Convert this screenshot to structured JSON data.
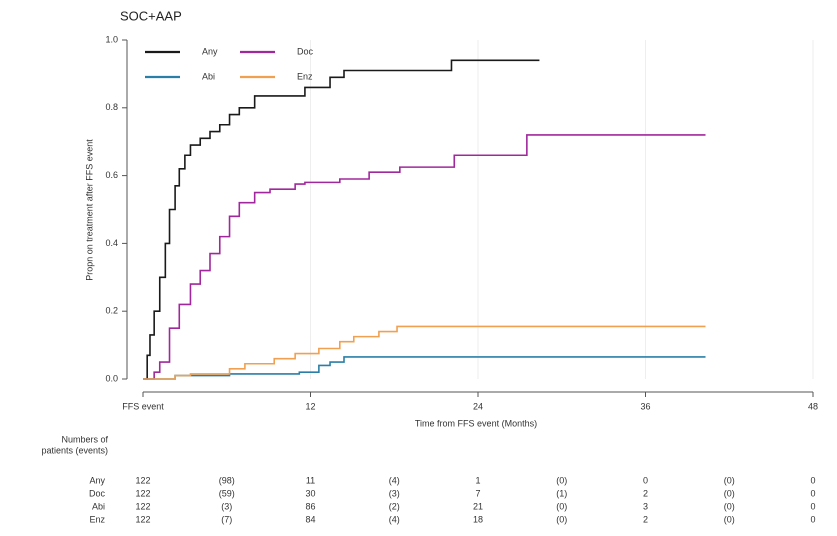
{
  "chart_data": {
    "type": "step",
    "title": "SOC+AAP",
    "x_label": "Time from FFS event (Months)",
    "y_label": "Propn on treatment after FFS event",
    "xlim": [
      0,
      48
    ],
    "xticks": [
      {
        "value": 0,
        "label": "FFS event"
      },
      12,
      24,
      36,
      48
    ],
    "ylim": [
      0,
      1
    ],
    "yticks": [
      {
        "value": 0,
        "label": "0.0"
      },
      0.2,
      0.4,
      0.6,
      0.8,
      {
        "value": 1,
        "label": "1.0"
      }
    ],
    "grid": true,
    "legend": "top-left",
    "series": [
      {
        "name": "Any",
        "color": "#1a1a1a",
        "x": [
          0,
          0.3,
          0.5,
          0.8,
          1.2,
          1.6,
          1.9,
          2.3,
          2.6,
          3.0,
          3.4,
          4.1,
          4.8,
          5.5,
          6.2,
          6.9,
          8.0,
          11.6,
          13.4,
          14.4,
          22.1,
          28.4
        ],
        "values": [
          0,
          0.07,
          0.13,
          0.2,
          0.3,
          0.4,
          0.5,
          0.57,
          0.62,
          0.66,
          0.69,
          0.71,
          0.73,
          0.75,
          0.78,
          0.8,
          0.835,
          0.86,
          0.89,
          0.91,
          0.94,
          0.94
        ]
      },
      {
        "name": "Doc",
        "color": "#a0289c",
        "x": [
          0,
          0.8,
          1.2,
          1.9,
          2.6,
          3.4,
          4.1,
          4.8,
          5.5,
          6.2,
          6.9,
          8.0,
          9.1,
          10.9,
          11.6,
          14.1,
          16.2,
          18.4,
          22.3,
          27.5,
          40.3
        ],
        "values": [
          0,
          0.02,
          0.05,
          0.15,
          0.22,
          0.28,
          0.32,
          0.37,
          0.42,
          0.48,
          0.52,
          0.55,
          0.56,
          0.575,
          0.58,
          0.59,
          0.61,
          0.625,
          0.66,
          0.72,
          0.72
        ]
      },
      {
        "name": "Abi",
        "color": "#2a7fa8",
        "x": [
          0,
          2.3,
          6.2,
          11.2,
          12.6,
          13.4,
          14.4,
          40.3
        ],
        "values": [
          0,
          0.01,
          0.015,
          0.02,
          0.04,
          0.05,
          0.065,
          0.065
        ]
      },
      {
        "name": "Enz",
        "color": "#f0a050",
        "x": [
          0,
          2.3,
          3.4,
          6.2,
          7.3,
          9.4,
          10.9,
          12.6,
          14.1,
          15.1,
          16.9,
          18.2,
          40.3
        ],
        "values": [
          0,
          0.01,
          0.015,
          0.03,
          0.045,
          0.06,
          0.075,
          0.09,
          0.11,
          0.125,
          0.14,
          0.155,
          0.155
        ]
      }
    ],
    "risk_table": {
      "title": [
        "Numbers of",
        "patients (events)"
      ],
      "rows": [
        {
          "name": "Any",
          "cells": [
            122,
            "(98)",
            11,
            "(4)",
            1,
            "(0)",
            0,
            "(0)",
            0
          ]
        },
        {
          "name": "Doc",
          "cells": [
            122,
            "(59)",
            30,
            "(3)",
            7,
            "(1)",
            2,
            "(0)",
            0
          ]
        },
        {
          "name": "Abi",
          "cells": [
            122,
            "(3)",
            86,
            "(2)",
            21,
            "(0)",
            3,
            "(0)",
            0
          ]
        },
        {
          "name": "Enz",
          "cells": [
            122,
            "(7)",
            84,
            "(4)",
            18,
            "(0)",
            2,
            "(0)",
            0
          ]
        }
      ]
    }
  }
}
